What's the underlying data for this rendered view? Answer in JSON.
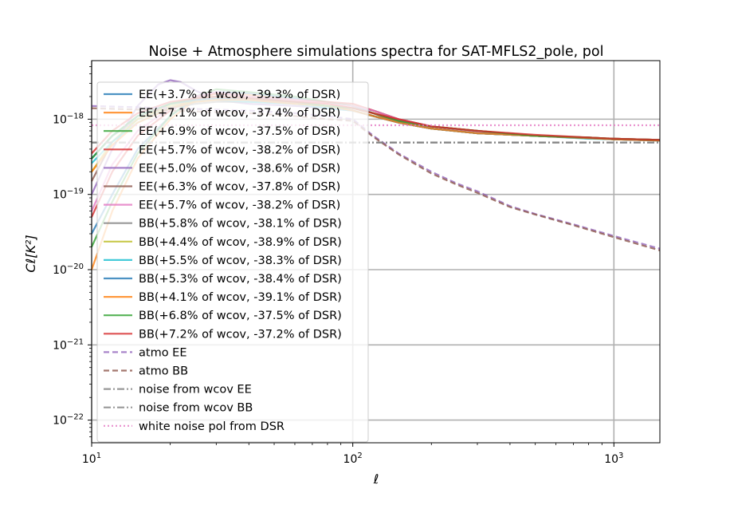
{
  "chart_data": {
    "type": "line",
    "title": "Noise + Atmosphere simulations spectra for SAT-MFLS2_pole, pol",
    "xlabel": "ℓ",
    "ylabel": "Cℓ[K²]",
    "xscale": "log",
    "yscale": "log",
    "xlim": [
      10,
      1500
    ],
    "ylim": [
      5e-23,
      6e-18
    ],
    "grid": true,
    "legend_location": "upper-left",
    "x_ticks": [
      {
        "value": 10,
        "base": "10",
        "exp": "1"
      },
      {
        "value": 100,
        "base": "10",
        "exp": "2"
      },
      {
        "value": 1000,
        "base": "10",
        "exp": "3"
      }
    ],
    "y_ticks": [
      {
        "value": 1e-22,
        "base": "10",
        "exp": "−22"
      },
      {
        "value": 1e-21,
        "base": "10",
        "exp": "−21"
      },
      {
        "value": 1e-20,
        "base": "10",
        "exp": "−20"
      },
      {
        "value": 1e-19,
        "base": "10",
        "exp": "−19"
      },
      {
        "value": 1e-18,
        "base": "10",
        "exp": "−18"
      }
    ],
    "series": [
      {
        "name": "EE(+3.7% of wcov, -39.3% of DSR)",
        "color": "#1f77b4",
        "style": "solid",
        "x": [
          10,
          12,
          15,
          20,
          25,
          30,
          40,
          60,
          80,
          100,
          120,
          150,
          200,
          300,
          500,
          800,
          1000,
          1500
        ],
        "y": [
          3e-20,
          1e-19,
          4e-19,
          1.1e-18,
          1.9e-18,
          2.3e-18,
          2.2e-18,
          1.9e-18,
          1.7e-18,
          1.5e-18,
          1.2e-18,
          9e-19,
          7.5e-19,
          6.5e-19,
          6e-19,
          5.6e-19,
          5.4e-19,
          5.3e-19
        ]
      },
      {
        "name": "EE(+7.1% of wcov, -37.4% of DSR)",
        "color": "#ff7f0e",
        "style": "solid",
        "x": [
          10,
          12,
          15,
          20,
          25,
          30,
          40,
          60,
          80,
          100,
          120,
          150,
          200,
          300,
          500,
          800,
          1000,
          1500
        ],
        "y": [
          1e-20,
          6e-20,
          3e-19,
          1e-18,
          1.8e-18,
          2.2e-18,
          2.1e-18,
          1.8e-18,
          1.6e-18,
          1.4e-18,
          1.2e-18,
          9e-19,
          7.5e-19,
          6.5e-19,
          6e-19,
          5.6e-19,
          5.5e-19,
          5.3e-19
        ]
      },
      {
        "name": "EE(+6.9% of wcov, -37.5% of DSR)",
        "color": "#2ca02c",
        "style": "solid",
        "x": [
          10,
          12,
          15,
          20,
          25,
          30,
          40,
          60,
          80,
          100,
          120,
          150,
          200,
          300,
          500,
          800,
          1000,
          1500
        ],
        "y": [
          2e-20,
          8e-20,
          3.5e-19,
          1.1e-18,
          2e-18,
          2.5e-18,
          2.3e-18,
          2e-18,
          1.7e-18,
          1.5e-18,
          1.3e-18,
          1e-18,
          8e-19,
          7e-19,
          6e-19,
          5.7e-19,
          5.5e-19,
          5.3e-19
        ]
      },
      {
        "name": "EE(+5.7% of wcov, -38.2% of DSR)",
        "color": "#d62728",
        "style": "solid",
        "x": [
          10,
          12,
          15,
          20,
          25,
          30,
          40,
          60,
          80,
          100,
          120,
          150,
          200,
          300,
          500,
          800,
          1000,
          1500
        ],
        "y": [
          5e-20,
          2e-19,
          6e-19,
          1.3e-18,
          2e-18,
          2.2e-18,
          2e-18,
          1.8e-18,
          1.7e-18,
          1.6e-18,
          1.3e-18,
          1e-18,
          8e-19,
          7e-19,
          6e-19,
          5.7e-19,
          5.5e-19,
          5.3e-19
        ]
      },
      {
        "name": "EE(+5.0% of wcov, -38.6% of DSR)",
        "color": "#9467bd",
        "style": "solid",
        "x": [
          10,
          12,
          15,
          18,
          20,
          22,
          25,
          30,
          40,
          60,
          80,
          100,
          120,
          150,
          200,
          300,
          500,
          800,
          1000,
          1500
        ],
        "y": [
          1e-19,
          4e-19,
          1.5e-18,
          2.9e-18,
          3.3e-18,
          3.1e-18,
          2.4e-18,
          1.8e-18,
          1.6e-18,
          1.5e-18,
          1.4e-18,
          1.3e-18,
          1.1e-18,
          9e-19,
          7.5e-19,
          6.5e-19,
          6e-19,
          5.6e-19,
          5.4e-19,
          5.3e-19
        ]
      },
      {
        "name": "EE(+6.3% of wcov, -37.8% of DSR)",
        "color": "#8c564b",
        "style": "solid",
        "x": [
          10,
          12,
          15,
          20,
          25,
          30,
          40,
          60,
          80,
          100,
          120,
          150,
          200,
          300,
          500,
          800,
          1000,
          1500
        ],
        "y": [
          1.5e-19,
          5e-19,
          1e-18,
          1.6e-18,
          1.9e-18,
          2e-18,
          1.9e-18,
          1.7e-18,
          1.5e-18,
          1.4e-18,
          1.2e-18,
          9.5e-19,
          7.5e-19,
          6.5e-19,
          6e-19,
          5.6e-19,
          5.4e-19,
          5.2e-19
        ]
      },
      {
        "name": "EE(+5.7% of wcov, -38.2% of DSR)",
        "color": "#e377c2",
        "style": "solid",
        "x": [
          10,
          12,
          15,
          20,
          25,
          30,
          40,
          60,
          80,
          100,
          120,
          150,
          200,
          300,
          500,
          800,
          1000,
          1500
        ],
        "y": [
          6e-20,
          2.5e-19,
          7e-19,
          1.4e-18,
          2e-18,
          2.3e-18,
          2e-18,
          1.8e-18,
          1.6e-18,
          1.5e-18,
          1.3e-18,
          1e-18,
          8e-19,
          6.8e-19,
          6e-19,
          5.6e-19,
          5.5e-19,
          5.3e-19
        ]
      },
      {
        "name": "BB(+5.8% of wcov, -38.1% of DSR)",
        "color": "#7f7f7f",
        "style": "solid",
        "x": [
          10,
          12,
          15,
          20,
          25,
          30,
          40,
          60,
          80,
          100,
          120,
          150,
          200,
          300,
          500,
          800,
          1000,
          1500
        ],
        "y": [
          3e-19,
          6e-19,
          1e-18,
          1.4e-18,
          1.6e-18,
          1.7e-18,
          1.7e-18,
          1.6e-18,
          1.5e-18,
          1.3e-18,
          1.1e-18,
          9e-19,
          7.5e-19,
          6.5e-19,
          6e-19,
          5.6e-19,
          5.4e-19,
          5.2e-19
        ]
      },
      {
        "name": "BB(+4.4% of wcov, -38.9% of DSR)",
        "color": "#bcbd22",
        "style": "solid",
        "x": [
          10,
          12,
          15,
          20,
          25,
          30,
          40,
          60,
          80,
          100,
          120,
          150,
          200,
          300,
          500,
          800,
          1000,
          1500
        ],
        "y": [
          2e-19,
          5e-19,
          1e-18,
          1.5e-18,
          1.8e-18,
          1.9e-18,
          1.8e-18,
          1.6e-18,
          1.5e-18,
          1.3e-18,
          1.1e-18,
          9e-19,
          7.5e-19,
          6.5e-19,
          6e-19,
          5.6e-19,
          5.4e-19,
          5.2e-19
        ]
      },
      {
        "name": "BB(+5.5% of wcov, -38.3% of DSR)",
        "color": "#17becf",
        "style": "solid",
        "x": [
          10,
          12,
          15,
          20,
          25,
          30,
          40,
          60,
          80,
          100,
          120,
          150,
          200,
          300,
          500,
          800,
          1000,
          1500
        ],
        "y": [
          2.6e-19,
          5e-19,
          9e-19,
          1.4e-18,
          1.7e-18,
          1.8e-18,
          1.7e-18,
          1.6e-18,
          1.4e-18,
          1.3e-18,
          1.1e-18,
          9e-19,
          7.5e-19,
          6.5e-19,
          6e-19,
          5.5e-19,
          5.4e-19,
          5.2e-19
        ]
      },
      {
        "name": "BB(+5.3% of wcov, -38.4% of DSR)",
        "color": "#1f77b4",
        "style": "solid",
        "x": [
          10,
          12,
          15,
          20,
          25,
          30,
          40,
          60,
          80,
          100,
          120,
          150,
          200,
          300,
          500,
          800,
          1000,
          1500
        ],
        "y": [
          3e-19,
          6e-19,
          1.1e-18,
          1.6e-18,
          1.8e-18,
          1.9e-18,
          1.8e-18,
          1.6e-18,
          1.5e-18,
          1.3e-18,
          1.1e-18,
          9e-19,
          7.5e-19,
          6.5e-19,
          6e-19,
          5.6e-19,
          5.4e-19,
          5.2e-19
        ]
      },
      {
        "name": "BB(+4.1% of wcov, -39.1% of DSR)",
        "color": "#ff7f0e",
        "style": "solid",
        "x": [
          10,
          12,
          15,
          20,
          25,
          30,
          40,
          60,
          80,
          100,
          120,
          150,
          200,
          300,
          500,
          800,
          1000,
          1500
        ],
        "y": [
          2e-19,
          4.5e-19,
          9e-19,
          1.4e-18,
          1.7e-18,
          1.8e-18,
          1.8e-18,
          1.6e-18,
          1.5e-18,
          1.3e-18,
          1.1e-18,
          9e-19,
          7.5e-19,
          6.5e-19,
          6e-19,
          5.6e-19,
          5.4e-19,
          5.2e-19
        ]
      },
      {
        "name": "BB(+6.8% of wcov, -37.5% of DSR)",
        "color": "#2ca02c",
        "style": "solid",
        "x": [
          10,
          12,
          15,
          20,
          25,
          30,
          40,
          60,
          80,
          100,
          120,
          150,
          200,
          300,
          500,
          800,
          1000,
          1500
        ],
        "y": [
          3e-19,
          6e-19,
          1.1e-18,
          1.6e-18,
          1.9e-18,
          2e-18,
          1.9e-18,
          1.7e-18,
          1.5e-18,
          1.4e-18,
          1.2e-18,
          9.5e-19,
          8e-19,
          7e-19,
          6e-19,
          5.7e-19,
          5.5e-19,
          5.3e-19
        ]
      },
      {
        "name": "BB(+7.2% of wcov, -37.2% of DSR)",
        "color": "#d62728",
        "style": "solid",
        "x": [
          10,
          12,
          15,
          20,
          25,
          30,
          40,
          60,
          80,
          100,
          120,
          150,
          200,
          300,
          500,
          800,
          1000,
          1500
        ],
        "y": [
          3.5e-19,
          7e-19,
          1.2e-18,
          1.7e-18,
          1.9e-18,
          2e-18,
          1.9e-18,
          1.7e-18,
          1.6e-18,
          1.4e-18,
          1.2e-18,
          1e-18,
          8e-19,
          7e-19,
          6.2e-19,
          5.7e-19,
          5.5e-19,
          5.3e-19
        ]
      },
      {
        "name": "atmo EE",
        "color": "#9467bd",
        "style": "dashed",
        "x": [
          10,
          20,
          40,
          60,
          80,
          100,
          120,
          150,
          200,
          250,
          300,
          400,
          500,
          700,
          1000,
          1500
        ],
        "y": [
          1.5e-18,
          1.4e-18,
          1.3e-18,
          1.2e-18,
          1.1e-18,
          1e-18,
          6e-19,
          3.5e-19,
          2e-19,
          1.4e-19,
          1.1e-19,
          7e-20,
          5.5e-20,
          4e-20,
          2.8e-20,
          1.9e-20
        ]
      },
      {
        "name": "atmo BB",
        "color": "#8c564b",
        "style": "dashed",
        "x": [
          10,
          20,
          40,
          60,
          80,
          100,
          120,
          150,
          200,
          250,
          300,
          400,
          500,
          700,
          1000,
          1500
        ],
        "y": [
          1.4e-18,
          1.3e-18,
          1.2e-18,
          1.1e-18,
          1e-18,
          9.5e-19,
          5.8e-19,
          3.4e-19,
          1.9e-19,
          1.35e-19,
          1.05e-19,
          6.8e-20,
          5.4e-20,
          3.9e-20,
          2.7e-20,
          1.8e-20
        ]
      },
      {
        "name": "noise from wcov EE",
        "color": "#7f7f7f",
        "style": "dashdot",
        "x": [
          10,
          1500
        ],
        "y": [
          4.9e-19,
          4.9e-19
        ]
      },
      {
        "name": "noise from wcov BB",
        "color": "#7f7f7f",
        "style": "dashdot",
        "x": [
          10,
          1500
        ],
        "y": [
          4.9e-19,
          4.9e-19
        ]
      },
      {
        "name": "white noise pol from DSR",
        "color": "#e377c2",
        "style": "dotted",
        "x": [
          10,
          1500
        ],
        "y": [
          8.3e-19,
          8.3e-19
        ]
      }
    ]
  }
}
